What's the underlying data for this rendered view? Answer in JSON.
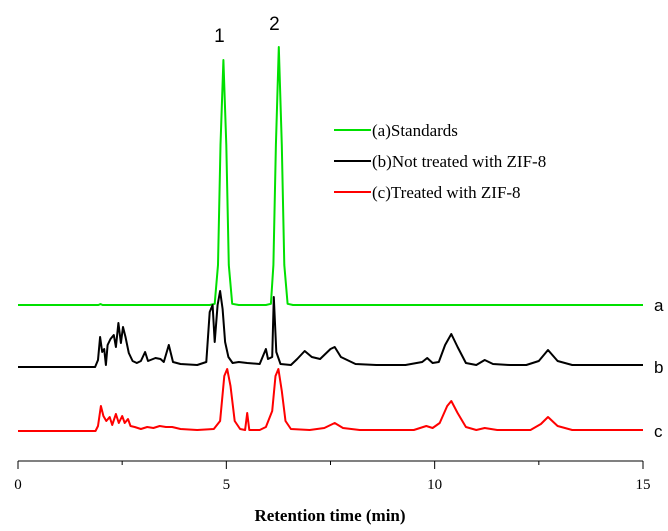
{
  "chart_data": {
    "type": "line",
    "xlabel": "Retention time (min)",
    "ylabel": "",
    "xlim": [
      0,
      15
    ],
    "xticks": [
      "0",
      "5",
      "10",
      "15"
    ],
    "grid": false,
    "legend_position": "top-right",
    "peak_labels": [
      {
        "text": "1",
        "x": 4.93
      },
      {
        "text": "2",
        "x": 6.25
      }
    ],
    "series": [
      {
        "name": "(a)Standards",
        "trace_label": "a",
        "color": "#00e000",
        "baseline": 0,
        "points": [
          [
            0,
            0
          ],
          [
            1.93,
            0
          ],
          [
            1.98,
            0.9
          ],
          [
            2.03,
            0
          ],
          [
            4.6,
            0
          ],
          [
            4.72,
            1.2
          ],
          [
            4.8,
            40
          ],
          [
            4.86,
            160
          ],
          [
            4.93,
            245
          ],
          [
            5.0,
            160
          ],
          [
            5.06,
            40
          ],
          [
            5.14,
            1.2
          ],
          [
            5.3,
            0
          ],
          [
            5.95,
            0
          ],
          [
            6.07,
            1.2
          ],
          [
            6.13,
            40
          ],
          [
            6.19,
            160
          ],
          [
            6.26,
            258
          ],
          [
            6.33,
            160
          ],
          [
            6.39,
            40
          ],
          [
            6.47,
            1.2
          ],
          [
            6.6,
            0
          ],
          [
            15,
            0
          ]
        ]
      },
      {
        "name": "(b)Not treated with ZIF-8",
        "trace_label": "b",
        "color": "#000000",
        "baseline": 0,
        "points": [
          [
            0,
            0
          ],
          [
            1.85,
            0
          ],
          [
            1.92,
            7
          ],
          [
            1.97,
            30
          ],
          [
            2.02,
            15
          ],
          [
            2.07,
            18
          ],
          [
            2.11,
            2
          ],
          [
            2.15,
            22
          ],
          [
            2.22,
            28
          ],
          [
            2.3,
            32
          ],
          [
            2.35,
            20
          ],
          [
            2.41,
            44
          ],
          [
            2.47,
            24
          ],
          [
            2.52,
            40
          ],
          [
            2.58,
            30
          ],
          [
            2.66,
            14
          ],
          [
            2.75,
            6
          ],
          [
            2.85,
            4
          ],
          [
            2.95,
            6
          ],
          [
            3.05,
            15
          ],
          [
            3.12,
            6
          ],
          [
            3.3,
            9
          ],
          [
            3.42,
            8
          ],
          [
            3.5,
            5
          ],
          [
            3.62,
            22
          ],
          [
            3.72,
            5
          ],
          [
            3.9,
            3
          ],
          [
            4.3,
            2
          ],
          [
            4.52,
            5
          ],
          [
            4.6,
            55
          ],
          [
            4.67,
            62
          ],
          [
            4.72,
            25
          ],
          [
            4.79,
            62
          ],
          [
            4.85,
            76
          ],
          [
            4.91,
            58
          ],
          [
            4.97,
            25
          ],
          [
            5.05,
            10
          ],
          [
            5.15,
            4
          ],
          [
            5.3,
            5
          ],
          [
            5.5,
            4
          ],
          [
            5.8,
            3
          ],
          [
            5.95,
            18
          ],
          [
            6.0,
            8
          ],
          [
            6.1,
            10
          ],
          [
            6.14,
            70
          ],
          [
            6.2,
            15
          ],
          [
            6.3,
            3
          ],
          [
            6.55,
            2
          ],
          [
            6.7,
            8
          ],
          [
            6.88,
            16
          ],
          [
            7.05,
            10
          ],
          [
            7.25,
            8
          ],
          [
            7.5,
            18
          ],
          [
            7.6,
            20
          ],
          [
            7.75,
            10
          ],
          [
            8.1,
            3
          ],
          [
            8.6,
            2
          ],
          [
            9.3,
            2
          ],
          [
            9.7,
            5
          ],
          [
            9.82,
            9
          ],
          [
            9.95,
            4
          ],
          [
            10.1,
            5
          ],
          [
            10.25,
            22
          ],
          [
            10.4,
            33
          ],
          [
            10.55,
            20
          ],
          [
            10.75,
            4
          ],
          [
            11.0,
            2
          ],
          [
            11.2,
            7
          ],
          [
            11.4,
            3
          ],
          [
            11.8,
            2
          ],
          [
            12.2,
            2
          ],
          [
            12.5,
            6
          ],
          [
            12.72,
            17
          ],
          [
            12.95,
            6
          ],
          [
            13.3,
            2
          ],
          [
            14.0,
            2
          ],
          [
            15,
            2
          ]
        ]
      },
      {
        "name": "(c)Treated with ZIF-8",
        "trace_label": "c",
        "color": "#ff0000",
        "baseline": 0,
        "points": [
          [
            0,
            0
          ],
          [
            1.86,
            0
          ],
          [
            1.92,
            5
          ],
          [
            1.99,
            25
          ],
          [
            2.05,
            15
          ],
          [
            2.12,
            10
          ],
          [
            2.2,
            14
          ],
          [
            2.26,
            6
          ],
          [
            2.35,
            17
          ],
          [
            2.42,
            8
          ],
          [
            2.5,
            15
          ],
          [
            2.56,
            8
          ],
          [
            2.64,
            12
          ],
          [
            2.7,
            5
          ],
          [
            2.8,
            4
          ],
          [
            2.95,
            2
          ],
          [
            3.1,
            4
          ],
          [
            3.25,
            3
          ],
          [
            3.4,
            5
          ],
          [
            3.55,
            4
          ],
          [
            3.7,
            4
          ],
          [
            3.9,
            2
          ],
          [
            4.3,
            1
          ],
          [
            4.7,
            2
          ],
          [
            4.85,
            10
          ],
          [
            4.95,
            55
          ],
          [
            5.02,
            62
          ],
          [
            5.1,
            45
          ],
          [
            5.2,
            10
          ],
          [
            5.33,
            2
          ],
          [
            5.45,
            1
          ],
          [
            5.5,
            18
          ],
          [
            5.55,
            1
          ],
          [
            5.8,
            1
          ],
          [
            5.95,
            4
          ],
          [
            6.1,
            20
          ],
          [
            6.18,
            55
          ],
          [
            6.25,
            62
          ],
          [
            6.33,
            40
          ],
          [
            6.42,
            10
          ],
          [
            6.55,
            2
          ],
          [
            7.0,
            1
          ],
          [
            7.35,
            3
          ],
          [
            7.6,
            8
          ],
          [
            7.8,
            3
          ],
          [
            8.2,
            1
          ],
          [
            9.5,
            1
          ],
          [
            9.8,
            5
          ],
          [
            9.95,
            3
          ],
          [
            10.12,
            8
          ],
          [
            10.3,
            25
          ],
          [
            10.4,
            30
          ],
          [
            10.55,
            18
          ],
          [
            10.75,
            4
          ],
          [
            11.0,
            1
          ],
          [
            11.2,
            3
          ],
          [
            11.5,
            1
          ],
          [
            12.3,
            1
          ],
          [
            12.55,
            7
          ],
          [
            12.72,
            14
          ],
          [
            12.95,
            5
          ],
          [
            13.3,
            1
          ],
          [
            15,
            1
          ]
        ]
      }
    ]
  }
}
